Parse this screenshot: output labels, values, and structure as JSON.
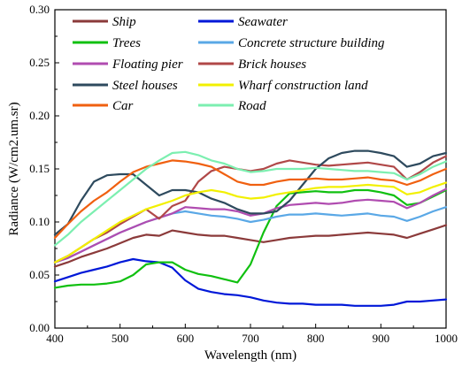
{
  "chart_data": {
    "type": "line",
    "xlabel": "Wavelength (nm)",
    "ylabel": "Radiance (W/cm2.um.sr)",
    "xlim": [
      400,
      1000
    ],
    "ylim": [
      0,
      0.3
    ],
    "x_ticks": [
      "400",
      "500",
      "600",
      "700",
      "800",
      "900",
      "1000"
    ],
    "y_ticks": [
      "0.00",
      "0.05",
      "0.10",
      "0.15",
      "0.20",
      "0.25",
      "0.30"
    ],
    "grid": false,
    "legend_placement": "top",
    "x": [
      400,
      420,
      440,
      460,
      480,
      500,
      520,
      540,
      560,
      580,
      600,
      620,
      640,
      660,
      680,
      700,
      720,
      740,
      760,
      780,
      800,
      820,
      840,
      860,
      880,
      900,
      920,
      940,
      960,
      980,
      1000
    ],
    "series": [
      {
        "name": "Ship",
        "color": "#8B3A3A",
        "values": [
          0.058,
          0.062,
          0.067,
          0.071,
          0.075,
          0.08,
          0.085,
          0.088,
          0.087,
          0.092,
          0.09,
          0.088,
          0.087,
          0.087,
          0.085,
          0.083,
          0.081,
          0.083,
          0.085,
          0.086,
          0.087,
          0.087,
          0.088,
          0.089,
          0.09,
          0.089,
          0.088,
          0.085,
          0.089,
          0.093,
          0.097
        ]
      },
      {
        "name": "Seawater",
        "color": "#0018D8",
        "values": [
          0.044,
          0.048,
          0.052,
          0.055,
          0.058,
          0.062,
          0.065,
          0.063,
          0.062,
          0.057,
          0.045,
          0.037,
          0.034,
          0.032,
          0.031,
          0.029,
          0.026,
          0.024,
          0.023,
          0.023,
          0.022,
          0.022,
          0.022,
          0.021,
          0.021,
          0.021,
          0.022,
          0.025,
          0.025,
          0.026,
          0.027
        ]
      },
      {
        "name": "Trees",
        "color": "#10C010",
        "values": [
          0.038,
          0.04,
          0.041,
          0.041,
          0.042,
          0.044,
          0.05,
          0.06,
          0.062,
          0.062,
          0.055,
          0.051,
          0.049,
          0.046,
          0.043,
          0.06,
          0.09,
          0.115,
          0.127,
          0.128,
          0.129,
          0.128,
          0.128,
          0.13,
          0.13,
          0.128,
          0.125,
          0.116,
          0.118,
          0.124,
          0.13
        ]
      },
      {
        "name": "Concrete structure building",
        "color": "#5AA8E6",
        "values": [
          0.062,
          0.066,
          0.072,
          0.078,
          0.084,
          0.09,
          0.095,
          0.1,
          0.104,
          0.108,
          0.11,
          0.108,
          0.106,
          0.105,
          0.103,
          0.1,
          0.102,
          0.105,
          0.107,
          0.107,
          0.108,
          0.107,
          0.106,
          0.107,
          0.108,
          0.106,
          0.105,
          0.101,
          0.105,
          0.11,
          0.114
        ]
      },
      {
        "name": "Floating pier",
        "color": "#B04CB0",
        "values": [
          0.062,
          0.066,
          0.072,
          0.078,
          0.084,
          0.09,
          0.095,
          0.1,
          0.104,
          0.108,
          0.114,
          0.113,
          0.112,
          0.112,
          0.11,
          0.106,
          0.108,
          0.113,
          0.116,
          0.117,
          0.118,
          0.117,
          0.118,
          0.12,
          0.121,
          0.12,
          0.119,
          0.113,
          0.118,
          0.125,
          0.131
        ]
      },
      {
        "name": "Brick houses",
        "color": "#B04848",
        "values": [
          0.062,
          0.068,
          0.076,
          0.084,
          0.09,
          0.098,
          0.105,
          0.112,
          0.103,
          0.115,
          0.12,
          0.138,
          0.148,
          0.152,
          0.15,
          0.148,
          0.15,
          0.155,
          0.158,
          0.156,
          0.154,
          0.153,
          0.154,
          0.155,
          0.156,
          0.154,
          0.152,
          0.14,
          0.147,
          0.156,
          0.162
        ]
      },
      {
        "name": "Steel houses",
        "color": "#2E4A5E",
        "values": [
          0.088,
          0.098,
          0.12,
          0.138,
          0.144,
          0.145,
          0.145,
          0.135,
          0.125,
          0.13,
          0.13,
          0.128,
          0.122,
          0.118,
          0.112,
          0.108,
          0.108,
          0.11,
          0.12,
          0.135,
          0.15,
          0.16,
          0.165,
          0.167,
          0.167,
          0.165,
          0.162,
          0.152,
          0.155,
          0.162,
          0.165
        ]
      },
      {
        "name": "Wharf construction land",
        "color": "#F2F000",
        "values": [
          0.062,
          0.068,
          0.076,
          0.084,
          0.092,
          0.1,
          0.106,
          0.112,
          0.116,
          0.12,
          0.125,
          0.128,
          0.13,
          0.128,
          0.124,
          0.122,
          0.123,
          0.126,
          0.128,
          0.13,
          0.132,
          0.133,
          0.133,
          0.134,
          0.135,
          0.134,
          0.133,
          0.126,
          0.128,
          0.133,
          0.137
        ]
      },
      {
        "name": "Car",
        "color": "#F06010",
        "values": [
          0.085,
          0.098,
          0.11,
          0.12,
          0.128,
          0.138,
          0.147,
          0.152,
          0.155,
          0.158,
          0.157,
          0.155,
          0.152,
          0.145,
          0.138,
          0.135,
          0.135,
          0.138,
          0.14,
          0.14,
          0.141,
          0.14,
          0.14,
          0.141,
          0.142,
          0.14,
          0.139,
          0.135,
          0.139,
          0.145,
          0.15
        ]
      },
      {
        "name": "Road",
        "color": "#7CEFB0",
        "values": [
          0.078,
          0.088,
          0.1,
          0.11,
          0.12,
          0.13,
          0.14,
          0.15,
          0.158,
          0.165,
          0.166,
          0.163,
          0.158,
          0.155,
          0.15,
          0.147,
          0.148,
          0.15,
          0.15,
          0.15,
          0.151,
          0.15,
          0.149,
          0.148,
          0.148,
          0.147,
          0.146,
          0.14,
          0.145,
          0.152,
          0.157
        ]
      }
    ]
  }
}
